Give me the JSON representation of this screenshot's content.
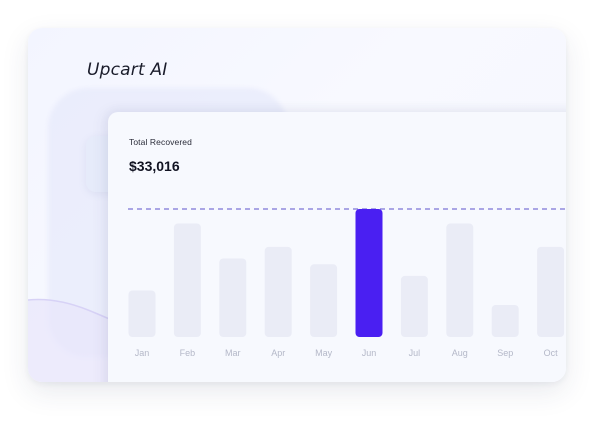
{
  "app": {
    "brand": "Upcart AI"
  },
  "panel": {
    "title": "Total Recovered",
    "value": "$33,016"
  },
  "colors": {
    "highlight": "#4a1ff2",
    "bar": "#eaecf6",
    "dashed_line": "#7b74d6",
    "month_label": "#b4b8c8"
  },
  "chart_data": {
    "type": "bar",
    "categories": [
      "Jan",
      "Feb",
      "Mar",
      "Apr",
      "May",
      "Jun",
      "Jul",
      "Aug",
      "Sep",
      "Oct"
    ],
    "values": [
      16,
      39,
      27,
      31,
      25,
      44,
      21,
      39,
      11,
      31
    ],
    "highlighted": "Jun",
    "reference_line": 44,
    "ylim": [
      0,
      44
    ],
    "grid": false
  }
}
